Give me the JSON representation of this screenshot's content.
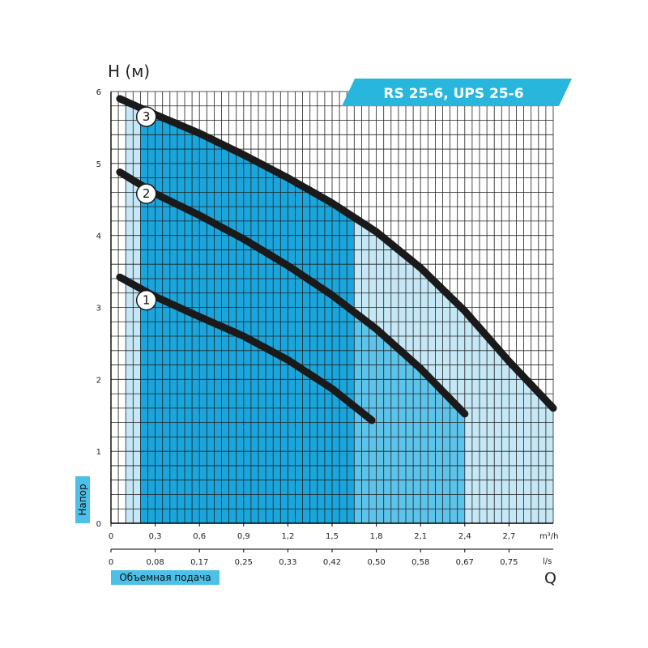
{
  "model_badge": "RS 25-6, UPS 25-6",
  "y_axis_symbol": "H (м)",
  "y_axis_label": "Напор",
  "x_axis_symbol": "Q",
  "x_axis_label": "Объемная подача",
  "colors": {
    "badge": "#29b6dc",
    "region_dark": "#1aa6dd",
    "region_mid": "#5cc3ea",
    "region_light": "#c5e7f6",
    "grid": "#222222",
    "curve": "#1a1a1a",
    "label_box": "#4cc0e6"
  },
  "chart_data": {
    "type": "line",
    "title": "RS 25-6, UPS 25-6",
    "xlabel": "Объемная подача",
    "ylabel": "Напор",
    "x_unit": "m³/h",
    "x2_unit": "l/s",
    "y_unit": "H (м)",
    "xlim": [
      0,
      3.0
    ],
    "ylim": [
      0,
      6
    ],
    "x_ticks": [
      "0",
      "0,3",
      "0,6",
      "0,9",
      "1,2",
      "1,5",
      "1,8",
      "2,1",
      "2,4",
      "2,7"
    ],
    "x_tick_values": [
      0,
      0.3,
      0.6,
      0.9,
      1.2,
      1.5,
      1.8,
      2.1,
      2.4,
      2.7
    ],
    "x2_ticks": [
      "0",
      "0,08",
      "0,17",
      "0,25",
      "0,33",
      "0,42",
      "0,50",
      "0,58",
      "0,67",
      "0,75"
    ],
    "y_ticks": [
      "0",
      "1",
      "2",
      "3",
      "4",
      "5",
      "6"
    ],
    "y_tick_values": [
      0,
      1,
      2,
      3,
      4,
      5,
      6
    ],
    "grid": true,
    "series": [
      {
        "name": "1",
        "x": [
          0.06,
          0.3,
          0.6,
          0.9,
          1.2,
          1.5,
          1.77
        ],
        "y": [
          3.42,
          3.15,
          2.87,
          2.6,
          2.27,
          1.87,
          1.43
        ],
        "label_at": [
          0.24,
          3.1
        ]
      },
      {
        "name": "2",
        "x": [
          0.06,
          0.3,
          0.6,
          0.9,
          1.2,
          1.5,
          1.8,
          2.1,
          2.4
        ],
        "y": [
          4.88,
          4.58,
          4.28,
          3.95,
          3.58,
          3.17,
          2.7,
          2.15,
          1.52
        ],
        "label_at": [
          0.24,
          4.58
        ]
      },
      {
        "name": "3",
        "x": [
          0.06,
          0.3,
          0.6,
          0.9,
          1.2,
          1.5,
          1.8,
          2.1,
          2.4,
          2.7,
          3.0
        ],
        "y": [
          5.9,
          5.68,
          5.42,
          5.12,
          4.8,
          4.45,
          4.05,
          3.55,
          2.95,
          2.25,
          1.6
        ],
        "label_at": [
          0.24,
          5.65
        ]
      }
    ],
    "regions": [
      {
        "x": [
          0.1,
          0.2
        ],
        "tone": "light"
      },
      {
        "x": [
          0.2,
          1.65
        ],
        "tone": "dark",
        "series": "3"
      },
      {
        "x": [
          1.65,
          2.4
        ],
        "tone": "mid",
        "series": "2"
      },
      {
        "x": [
          2.4,
          3.0
        ],
        "tone": "light",
        "series": "3"
      }
    ]
  }
}
